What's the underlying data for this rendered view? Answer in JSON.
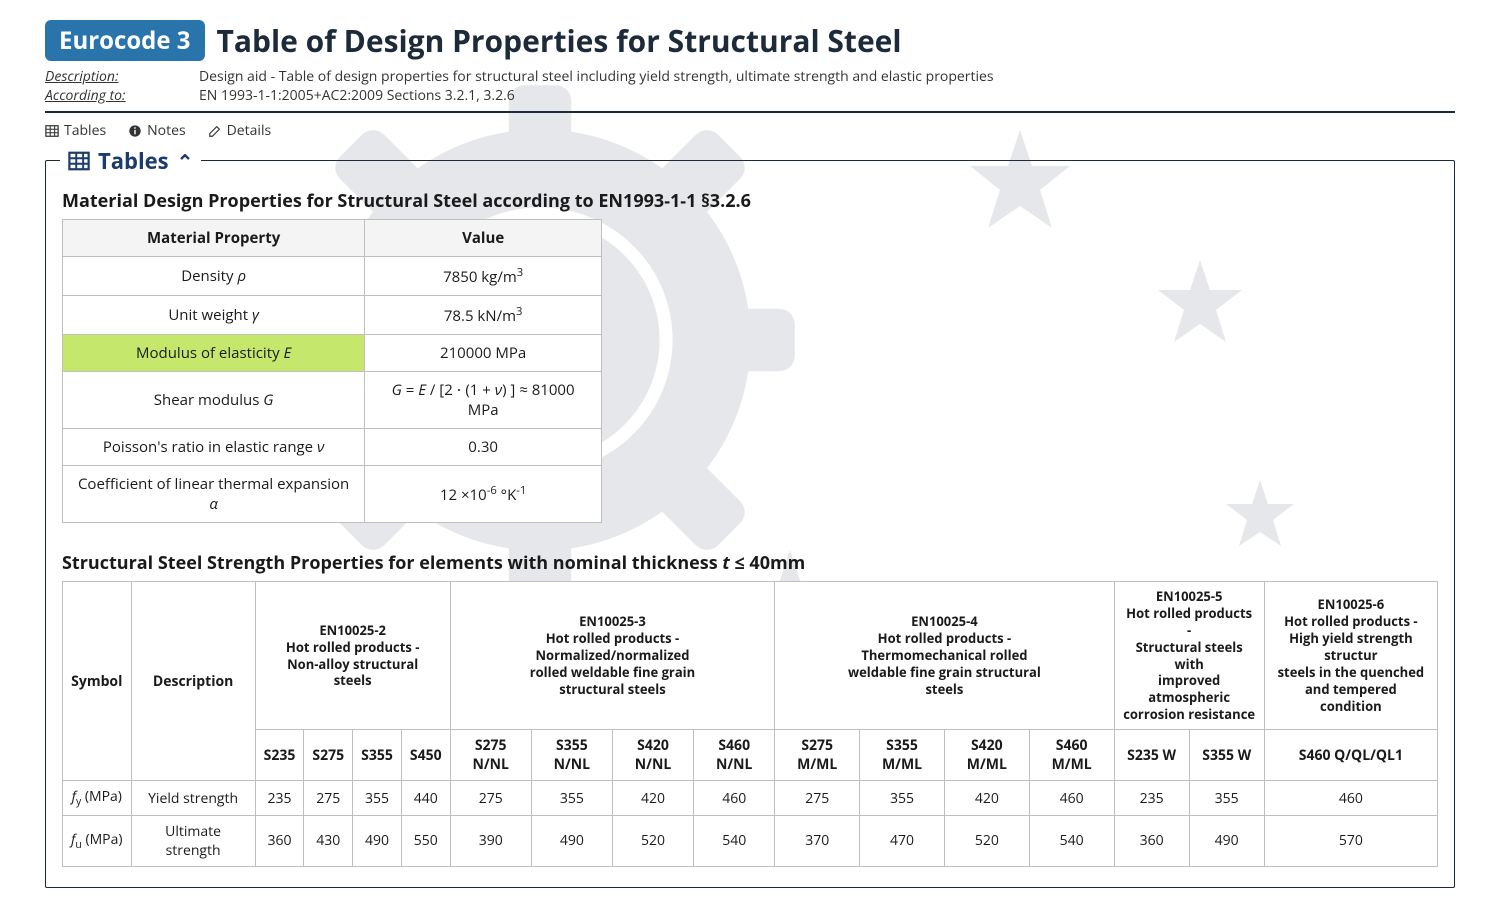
{
  "badge": "Eurocode 3",
  "title": "Table of Design Properties for Structural Steel",
  "meta": {
    "desc_label": "Description:",
    "desc_val": "Design aid - Table of design properties for structural steel including yield strength, ultimate strength and elastic properties",
    "acc_label": "According to:",
    "acc_val": "EN 1993-1-1:2005+AC2:2009 Sections 3.2.1, 3.2.6"
  },
  "toolbar": {
    "tables": "Tables",
    "notes": "Notes",
    "details": "Details"
  },
  "section": {
    "title": "Tables"
  },
  "mat_table": {
    "title": "Material Design Properties for Structural Steel according to EN1993-1-1 §3.2.6",
    "head_prop": "Material Property",
    "head_val": "Value",
    "rows": [
      {
        "prop_html": "Density <span class='italic-sym'>ρ</span>",
        "val_html": "7850 kg/m<sup>3</sup>",
        "hl": false
      },
      {
        "prop_html": "Unit weight <span class='italic-sym'>γ</span>",
        "val_html": "78.5 kN/m<sup>3</sup>",
        "hl": false
      },
      {
        "prop_html": "Modulus of elasticity <span class='italic-sym'>E</span>",
        "val_html": "210000 MPa",
        "hl": true
      },
      {
        "prop_html": "Shear modulus <span class='italic-sym'>G</span>",
        "val_html": "<span class='italic-sym'>G</span> = <span class='italic-sym'>E</span> / [2 ⋅ (1 + <span class='italic-sym'>ν</span>) ] ≈ 81000 MPa",
        "hl": false
      },
      {
        "prop_html": "Poisson's ratio in elastic range <span class='italic-sym'>ν</span>",
        "val_html": "0.30",
        "hl": false
      },
      {
        "prop_html": "Coefficient of linear thermal expansion <span class='italic-sym'>α</span>",
        "val_html": "12 ×10<sup>-6</sup> °K<sup>-1</sup>",
        "hl": false
      }
    ]
  },
  "strength_table": {
    "title_html": "Structural Steel Strength Properties for elements with nominal thickness <span class='italic-sym'>t</span> ≤ 40mm",
    "col_symbol": "Symbol",
    "col_desc": "Description",
    "groups": [
      {
        "head_html": "EN10025-2<br>Hot rolled products -<br>Non-alloy structural<br>steels",
        "subs": [
          "S235",
          "S275",
          "S355",
          "S450"
        ]
      },
      {
        "head_html": "EN10025-3<br>Hot rolled products -<br>Normalized/normalized<br>rolled weldable fine grain<br>structural steels",
        "subs": [
          "S275 N/NL",
          "S355 N/NL",
          "S420 N/NL",
          "S460 N/NL"
        ]
      },
      {
        "head_html": "EN10025-4<br>Hot rolled products -<br>Thermomechanical rolled<br>weldable fine grain structural<br>steels",
        "subs": [
          "S275 M/ML",
          "S355 M/ML",
          "S420 M/ML",
          "S460 M/ML"
        ]
      },
      {
        "head_html": "EN10025-5<br>Hot rolled products -<br>Structural steels with<br>improved atmospheric<br>corrosion resistance",
        "subs": [
          "S235 W",
          "S355 W"
        ]
      },
      {
        "head_html": "EN10025-6<br>Hot rolled products -<br>High yield strength structur<br>steels in the quenched<br>and tempered condition",
        "subs": [
          "S460 Q/QL/QL1"
        ]
      }
    ],
    "rows": [
      {
        "sym_html": "<span class='italic-sym'>f</span><sub>y</sub> (MPa)",
        "desc": "Yield strength",
        "vals": [
          "235",
          "275",
          "355",
          "440",
          "275",
          "355",
          "420",
          "460",
          "275",
          "355",
          "420",
          "460",
          "235",
          "355",
          "460"
        ]
      },
      {
        "sym_html": "<span class='italic-sym'>f</span><sub>u</sub> (MPa)",
        "desc": "Ultimate strength",
        "vals": [
          "360",
          "430",
          "490",
          "550",
          "390",
          "490",
          "520",
          "540",
          "370",
          "470",
          "520",
          "540",
          "360",
          "490",
          "570"
        ]
      }
    ]
  },
  "colors": {
    "badge_bg": "#2974ab",
    "highlight": "#c5e86c",
    "heading": "#1c3c6e",
    "border": "#bfbfbf"
  }
}
